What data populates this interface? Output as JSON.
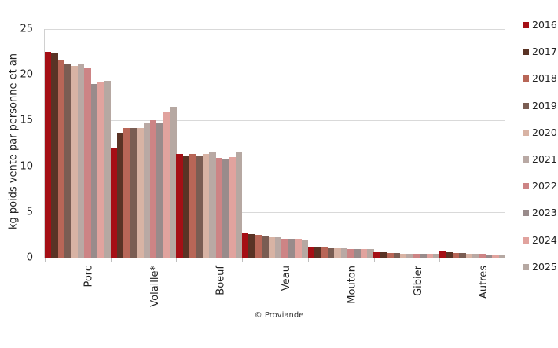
{
  "chart_data": {
    "type": "bar",
    "title": "",
    "xlabel": "",
    "ylabel": "kg poids vente par personne et an",
    "ylim": [
      0,
      25
    ],
    "yticks": [
      0,
      5,
      10,
      15,
      20,
      25
    ],
    "grid": true,
    "legend_position": "right",
    "categories": [
      "Porc",
      "Volaille*",
      "Boeuf",
      "Veau",
      "Mouton",
      "Gibier",
      "Autres"
    ],
    "series": [
      {
        "name": "2016",
        "color": "#a50f15",
        "values": [
          22.5,
          12.0,
          11.3,
          2.7,
          1.2,
          0.6,
          0.65
        ]
      },
      {
        "name": "2017",
        "color": "#5a3325",
        "values": [
          22.3,
          13.7,
          11.1,
          2.55,
          1.15,
          0.62,
          0.6
        ]
      },
      {
        "name": "2018",
        "color": "#b86657",
        "values": [
          21.6,
          14.2,
          11.35,
          2.5,
          1.1,
          0.55,
          0.55
        ]
      },
      {
        "name": "2019",
        "color": "#7a5d53",
        "values": [
          21.1,
          14.2,
          11.2,
          2.4,
          1.05,
          0.55,
          0.5
        ]
      },
      {
        "name": "2020",
        "color": "#d8b3a4",
        "values": [
          21.0,
          14.2,
          11.3,
          2.25,
          1.0,
          0.45,
          0.45
        ]
      },
      {
        "name": "2021",
        "color": "#b9a9a4",
        "values": [
          21.2,
          14.8,
          11.5,
          2.2,
          1.0,
          0.45,
          0.45
        ]
      },
      {
        "name": "2022",
        "color": "#cd8485",
        "values": [
          20.7,
          15.0,
          10.9,
          2.1,
          0.95,
          0.45,
          0.4
        ]
      },
      {
        "name": "2023",
        "color": "#998b8b",
        "values": [
          19.0,
          14.7,
          10.8,
          2.05,
          0.95,
          0.42,
          0.38
        ]
      },
      {
        "name": "2024",
        "color": "#e1a39e",
        "values": [
          19.2,
          15.9,
          11.0,
          2.05,
          0.95,
          0.42,
          0.35
        ]
      },
      {
        "name": "2025",
        "color": "#b6a8a2",
        "values": [
          19.3,
          16.5,
          11.5,
          1.9,
          0.95,
          0.42,
          0.33
        ]
      }
    ]
  },
  "axis": {
    "ylabel": "kg poids vente par personne et an",
    "yticks": [
      "25",
      "20",
      "15",
      "10",
      "5",
      "0"
    ]
  },
  "legend": {
    "items": [
      {
        "label": "2016",
        "color": "#a50f15"
      },
      {
        "label": "2017",
        "color": "#5a3325"
      },
      {
        "label": "2018",
        "color": "#b86657"
      },
      {
        "label": "2019",
        "color": "#7a5d53"
      },
      {
        "label": "2020",
        "color": "#d8b3a4"
      },
      {
        "label": "2021",
        "color": "#b9a9a4"
      },
      {
        "label": "2022",
        "color": "#cd8485"
      },
      {
        "label": "2023",
        "color": "#998b8b"
      },
      {
        "label": "2024",
        "color": "#e1a39e"
      },
      {
        "label": "2025",
        "color": "#b6a8a2"
      }
    ]
  },
  "footer": {
    "credit": "© Proviande"
  }
}
